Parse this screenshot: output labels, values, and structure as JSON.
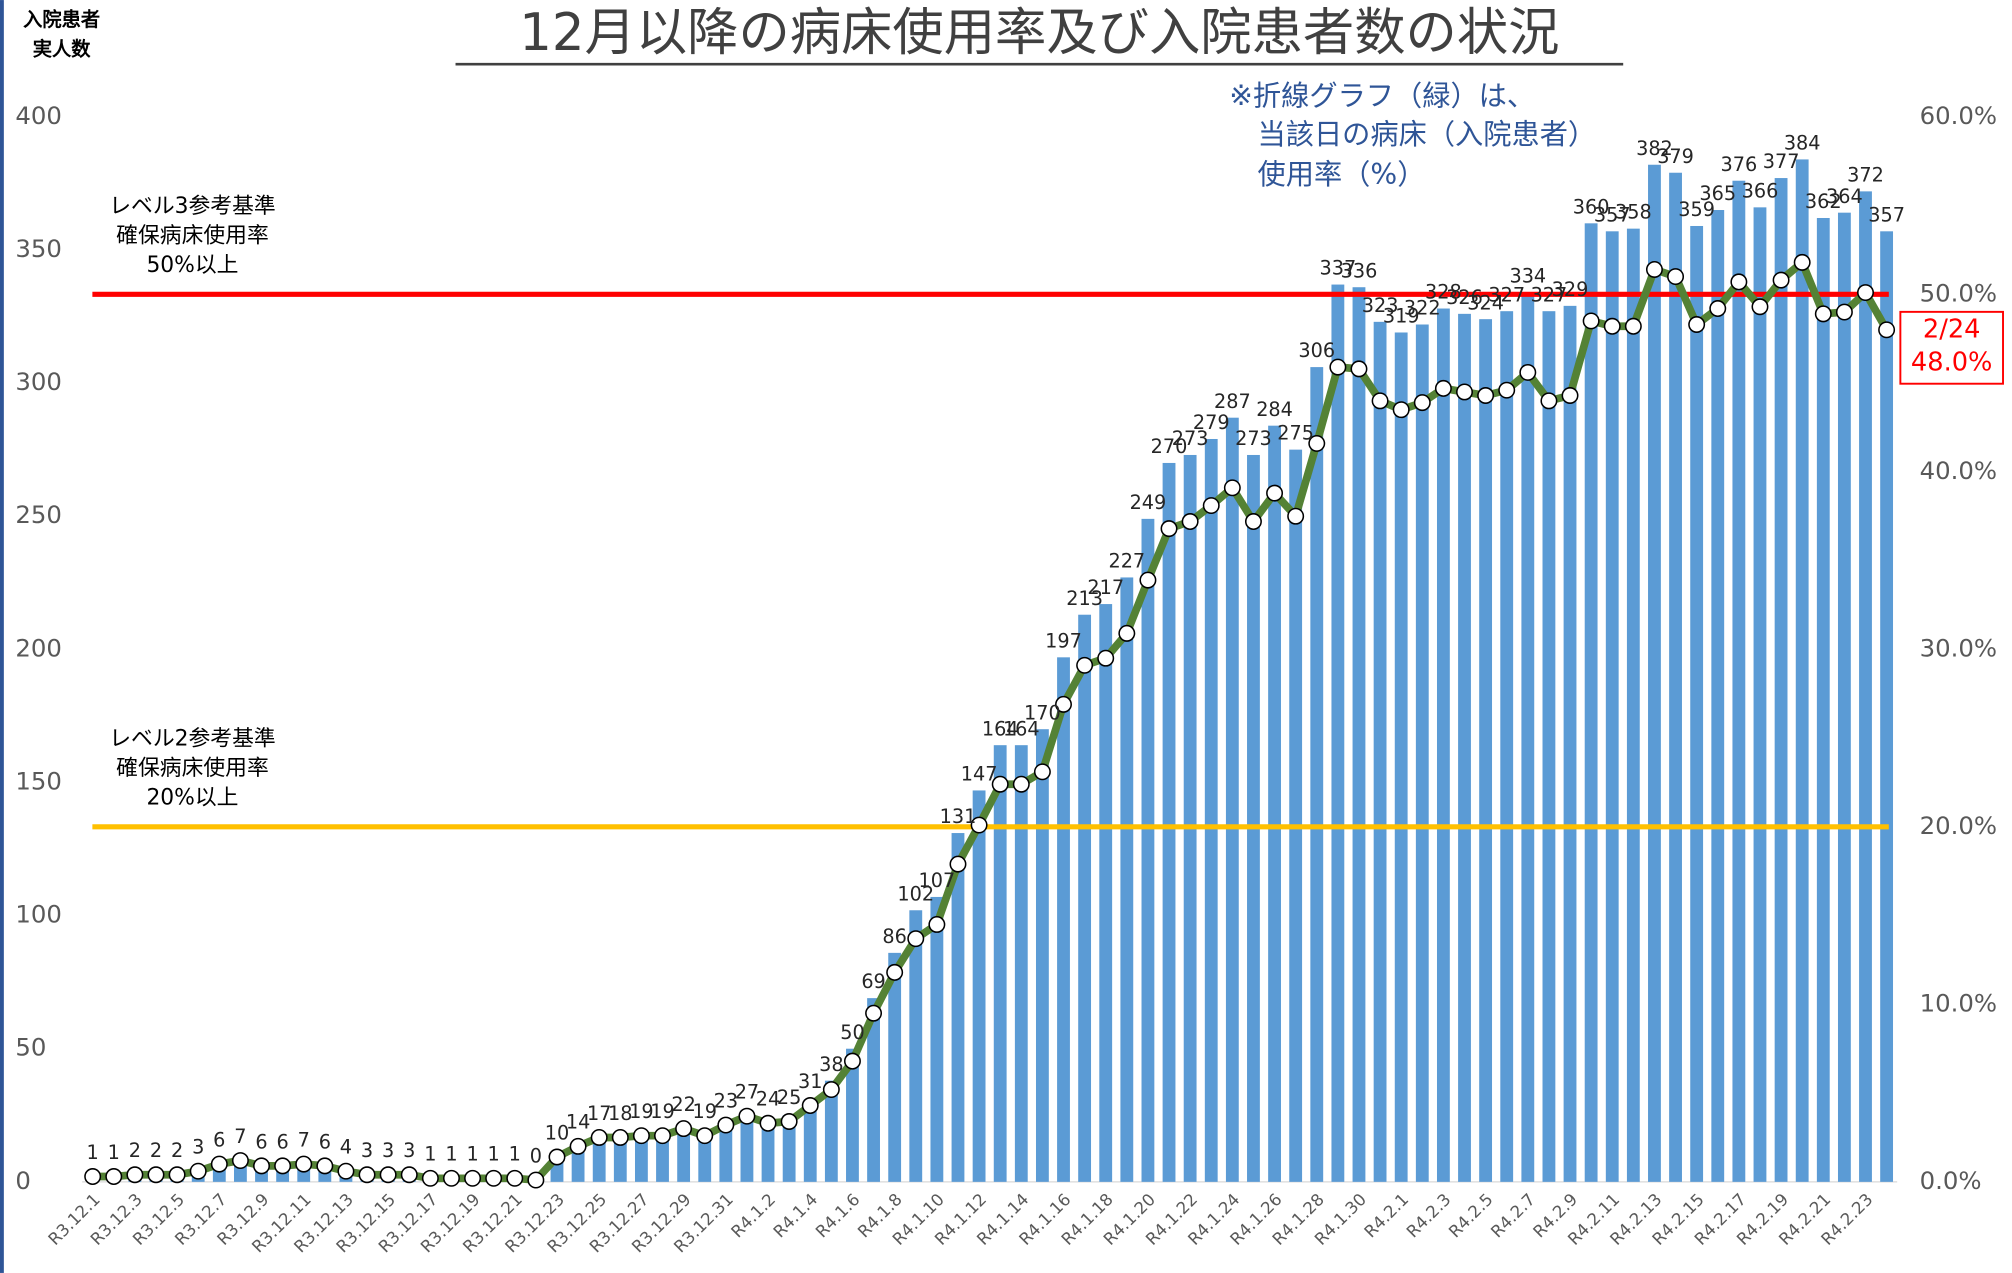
{
  "chart_data": {
    "type": "bar_line",
    "title": "12月以降の病床使用率及び入院患者数の状況",
    "y_axis_title": [
      "入院患者",
      "実人数"
    ],
    "note": [
      "※折線グラフ（緑）は、",
      "当該日の病床（入院患者）",
      "使用率（%）"
    ],
    "categories": [
      "R3.12.1",
      null,
      "R3.12.3",
      null,
      "R3.12.5",
      null,
      "R3.12.7",
      null,
      "R3.12.9",
      null,
      "R3.12.11",
      null,
      "R3.12.13",
      null,
      "R3.12.15",
      null,
      "R3.12.17",
      null,
      "R3.12.19",
      null,
      "R3.12.21",
      null,
      "R3.12.23",
      null,
      "R3.12.25",
      null,
      "R3.12.27",
      null,
      "R3.12.29",
      null,
      "R3.12.31",
      null,
      "R4.1.2",
      null,
      "R4.1.4",
      null,
      "R4.1.6",
      null,
      "R4.1.8",
      null,
      "R4.1.10",
      null,
      "R4.1.12",
      null,
      "R4.1.14",
      null,
      "R4.1.16",
      null,
      "R4.1.18",
      null,
      "R4.1.20",
      null,
      "R4.1.22",
      null,
      "R4.1.24",
      null,
      "R4.1.26",
      null,
      "R4.1.28",
      null,
      "R4.1.30",
      null,
      "R4.2.1",
      null,
      "R4.2.3",
      null,
      "R4.2.5",
      null,
      "R4.2.7",
      null,
      "R4.2.9",
      null,
      "R4.2.11",
      null,
      "R4.2.13",
      null,
      "R4.2.15",
      null,
      "R4.2.17",
      null,
      "R4.2.19",
      null,
      "R4.2.21",
      null,
      "R4.2.23",
      null
    ],
    "series": [
      {
        "color": "#5b9bd5",
        "values": [
          1,
          1,
          2,
          2,
          2,
          3,
          6,
          7,
          6,
          6,
          7,
          6,
          4,
          3,
          3,
          3,
          1,
          1,
          1,
          1,
          1,
          0,
          10,
          14,
          17,
          18,
          19,
          19,
          22,
          19,
          23,
          27,
          24,
          25,
          31,
          38,
          50,
          69,
          86,
          102,
          107,
          131,
          147,
          164,
          164,
          170,
          197,
          213,
          217,
          227,
          249,
          270,
          273,
          279,
          287,
          273,
          284,
          275,
          306,
          337,
          336,
          323,
          319,
          322,
          328,
          326,
          324,
          327,
          334,
          327,
          329,
          360,
          357,
          358,
          382,
          379,
          359,
          365,
          376,
          366,
          377,
          384,
          362,
          364,
          372,
          357
        ]
      },
      {
        "color": "#548235",
        "axis": "y2",
        "values": [
          0.3,
          0.3,
          0.4,
          0.4,
          0.4,
          0.6,
          1.0,
          1.2,
          0.9,
          0.9,
          1.0,
          0.9,
          0.6,
          0.4,
          0.4,
          0.4,
          0.2,
          0.2,
          0.2,
          0.2,
          0.2,
          0.1,
          1.4,
          2.0,
          2.5,
          2.5,
          2.6,
          2.6,
          3.0,
          2.6,
          3.2,
          3.7,
          3.3,
          3.4,
          4.3,
          5.2,
          6.8,
          9.5,
          11.8,
          13.7,
          14.5,
          17.9,
          20.1,
          22.4,
          22.4,
          23.1,
          26.9,
          29.1,
          29.5,
          30.9,
          33.9,
          36.8,
          37.2,
          38.1,
          39.1,
          37.2,
          38.8,
          37.5,
          41.6,
          45.9,
          45.8,
          44.0,
          43.5,
          43.9,
          44.7,
          44.5,
          44.3,
          44.6,
          45.6,
          44.0,
          44.3,
          48.5,
          48.2,
          48.2,
          51.4,
          51.0,
          48.3,
          49.2,
          50.7,
          49.3,
          50.8,
          51.8,
          48.9,
          49.0,
          50.1,
          48.0
        ]
      }
    ],
    "reference_lines": [
      {
        "value": 50,
        "axis": "y2",
        "color": "#ff0000",
        "label": [
          "レベル3参考基準",
          "確保病床使用率",
          "50%以上"
        ]
      },
      {
        "value": 20,
        "axis": "y2",
        "color": "#ffc000",
        "label": [
          "レベル2参考基準",
          "確保病床使用率",
          "20%以上"
        ]
      }
    ],
    "last_point_annotation": [
      "2/24",
      "48.0%"
    ],
    "ylim": [
      0,
      400
    ],
    "yticks": [
      0,
      50,
      100,
      150,
      200,
      250,
      300,
      350,
      400
    ],
    "y2lim": [
      0,
      60
    ],
    "y2ticks": [
      {
        "value": 0,
        "label": "0.0%"
      },
      {
        "value": 10,
        "label": "10.0%"
      },
      {
        "value": 20,
        "label": "20.0%"
      },
      {
        "value": 30,
        "label": "30.0%"
      },
      {
        "value": 40,
        "label": "40.0%"
      },
      {
        "value": 50,
        "label": "50.0%"
      },
      {
        "value": 60,
        "label": "60.0%"
      }
    ]
  }
}
